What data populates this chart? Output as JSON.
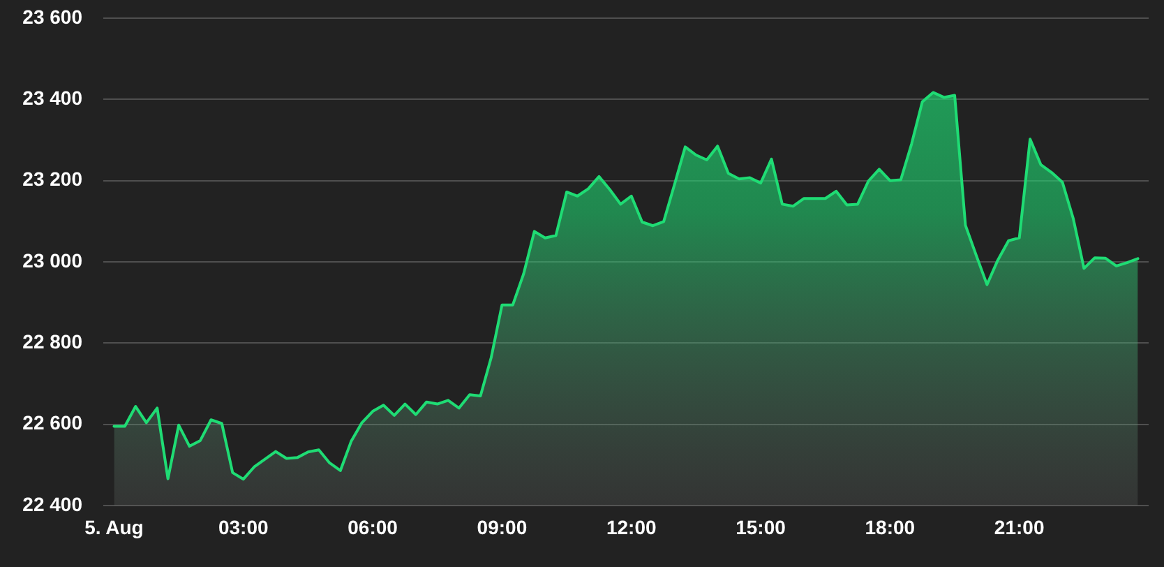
{
  "chart_data": {
    "type": "area",
    "x": [
      0,
      0.25,
      0.5,
      0.75,
      1,
      1.25,
      1.5,
      1.75,
      2,
      2.25,
      2.5,
      2.75,
      3,
      3.25,
      3.5,
      3.75,
      4,
      4.25,
      4.5,
      4.75,
      5,
      5.25,
      5.5,
      5.75,
      6,
      6.25,
      6.5,
      6.75,
      7,
      7.25,
      7.5,
      7.75,
      8,
      8.25,
      8.5,
      8.75,
      9,
      9.25,
      9.5,
      9.75,
      10,
      10.25,
      10.5,
      10.75,
      11,
      11.25,
      11.5,
      11.75,
      12,
      12.25,
      12.5,
      12.75,
      13,
      13.25,
      13.5,
      13.75,
      14,
      14.25,
      14.5,
      14.75,
      15,
      15.25,
      15.5,
      15.75,
      16,
      16.25,
      16.5,
      16.75,
      17,
      17.25,
      17.5,
      17.75,
      18,
      18.25,
      18.5,
      18.75,
      19,
      19.25,
      19.5,
      19.75,
      20,
      20.25,
      20.5,
      20.75,
      21,
      21.25,
      21.5,
      21.75,
      22,
      22.25,
      22.5,
      22.75,
      23,
      23.25,
      23.5,
      23.75
    ],
    "series": [
      {
        "color": "#1fdc74",
        "values": [
          22595,
          22595,
          22644,
          22604,
          22640,
          22466,
          22598,
          22546,
          22560,
          22611,
          22602,
          22481,
          22465,
          22495,
          22514,
          22533,
          22516,
          22518,
          22532,
          22537,
          22505,
          22486,
          22558,
          22604,
          22632,
          22647,
          22622,
          22650,
          22624,
          22655,
          22650,
          22659,
          22640,
          22673,
          22670,
          22765,
          22894,
          22894,
          22970,
          23075,
          23059,
          23065,
          23172,
          23162,
          23180,
          23210,
          23178,
          23142,
          23162,
          23098,
          23089,
          23099,
          23190,
          23283,
          23263,
          23251,
          23285,
          23218,
          23204,
          23207,
          23194,
          23253,
          23142,
          23137,
          23156,
          23156,
          23156,
          23174,
          23140,
          23142,
          23199,
          23228,
          23200,
          23202,
          23290,
          23394,
          23417,
          23405,
          23410,
          23090,
          23016,
          22944,
          23004,
          23052,
          23059,
          23302,
          23239,
          23220,
          23196,
          23107,
          22984,
          23010,
          23009,
          22990,
          22998,
          23008
        ]
      }
    ],
    "xlim": [
      -0.25,
      24
    ],
    "xticks": [
      {
        "value": 0,
        "label": "5. Aug"
      },
      {
        "value": 3,
        "label": "03:00"
      },
      {
        "value": 6,
        "label": "06:00"
      },
      {
        "value": 9,
        "label": "09:00"
      },
      {
        "value": 12,
        "label": "12:00"
      },
      {
        "value": 15,
        "label": "15:00"
      },
      {
        "value": 18,
        "label": "18:00"
      },
      {
        "value": 21,
        "label": "21:00"
      }
    ],
    "ylim": [
      22400,
      23600
    ],
    "yticks": [
      {
        "value": 22400,
        "label": "22 400"
      },
      {
        "value": 22600,
        "label": "22 600"
      },
      {
        "value": 22800,
        "label": "22 800"
      },
      {
        "value": 23000,
        "label": "23 000"
      },
      {
        "value": 23200,
        "label": "23 200"
      },
      {
        "value": 23400,
        "label": "23 400"
      },
      {
        "value": 23600,
        "label": "23 600"
      }
    ],
    "grid": "y",
    "marker": "none"
  }
}
